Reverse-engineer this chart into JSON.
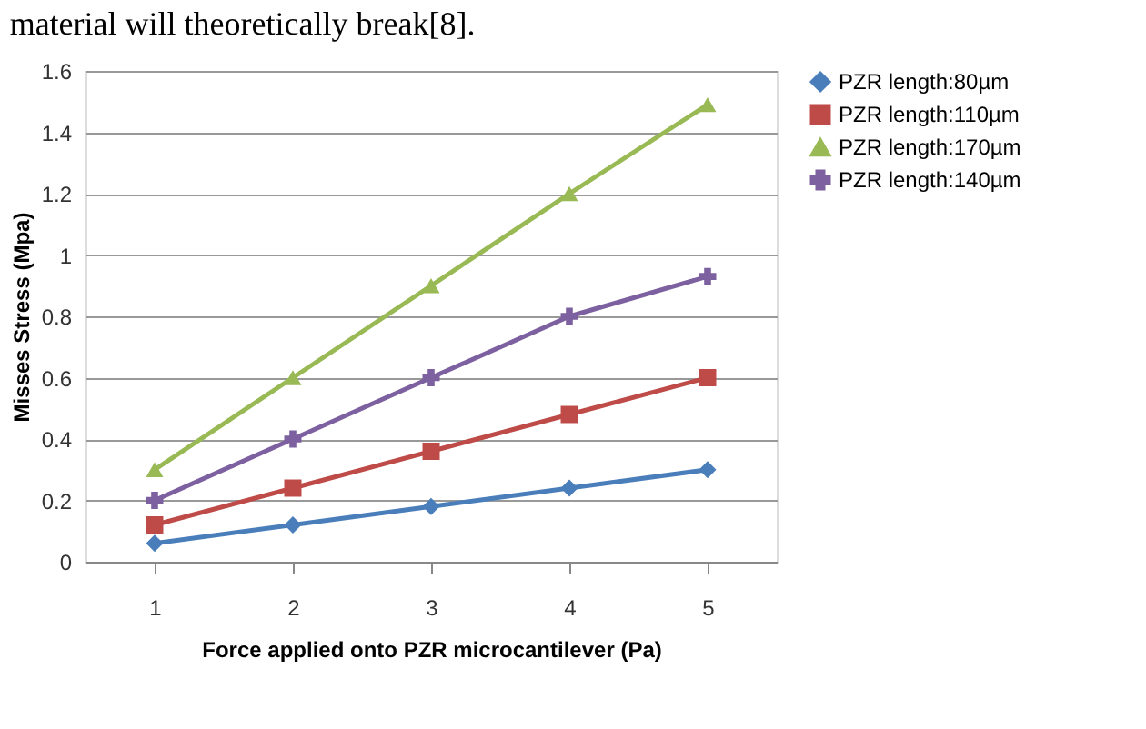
{
  "chart_data": {
    "type": "line",
    "annotations": [
      "material will theoretically break[8]."
    ],
    "xlabel": "Force applied onto PZR microcantilever (Pa)",
    "ylabel": "Misses Stress (Mpa)",
    "categories": [
      "1",
      "2",
      "3",
      "4",
      "5"
    ],
    "series": [
      {
        "name": "PZR length:80µm",
        "color": "#4a7ebb",
        "marker": "diamond",
        "values": [
          0.06,
          0.12,
          0.18,
          0.24,
          0.3
        ]
      },
      {
        "name": "PZR length:110µm",
        "color": "#be4b48",
        "marker": "square",
        "values": [
          0.12,
          0.24,
          0.36,
          0.48,
          0.6
        ]
      },
      {
        "name": "PZR length:170µm",
        "color": "#98b954",
        "marker": "triangle",
        "values": [
          0.3,
          0.6,
          0.9,
          1.2,
          1.49
        ]
      },
      {
        "name": "PZR length:140µm",
        "color": "#7d60a0",
        "marker": "cross",
        "values": [
          0.2,
          0.4,
          0.6,
          0.8,
          0.93
        ]
      }
    ],
    "ylim": [
      0,
      1.6
    ],
    "yticks": [
      0,
      0.2,
      0.4,
      0.6,
      0.8,
      1,
      1.2,
      1.4,
      1.6
    ],
    "grid": "y",
    "legend": "right",
    "line_style": "solid"
  }
}
